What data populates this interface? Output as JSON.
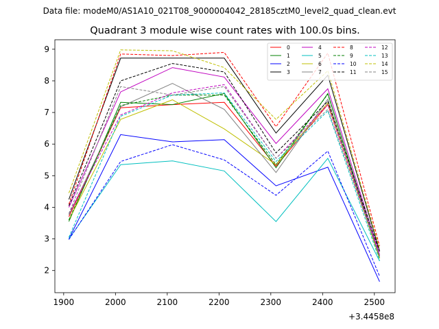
{
  "chart_data": {
    "type": "line",
    "suptitle": "Data file: modeM0/AS1A10_021T08_9000004042_28185cztM0_level2_quad_clean.evt",
    "title": "Quadrant 3 module wise count rates with 100.0s bins.",
    "xlabel": "",
    "ylabel": "",
    "x_offset_label": "+3.4458e8",
    "x": [
      1910,
      2010,
      2110,
      2210,
      2310,
      2410,
      2510
    ],
    "xlim": [
      1883,
      2540
    ],
    "ylim": [
      1.3,
      9.3
    ],
    "xticks": [
      1900,
      2000,
      2100,
      2200,
      2300,
      2400,
      2500
    ],
    "yticks": [
      2,
      3,
      4,
      5,
      6,
      7,
      8,
      9
    ],
    "legend_position": "top-right",
    "series": [
      {
        "name": "0",
        "color": "#ff0000",
        "dash": "solid",
        "values": [
          3.7,
          7.15,
          7.25,
          7.32,
          5.3,
          7.25,
          2.45
        ]
      },
      {
        "name": "1",
        "color": "#008000",
        "dash": "solid",
        "values": [
          3.55,
          7.32,
          7.25,
          7.6,
          5.25,
          7.6,
          2.4
        ]
      },
      {
        "name": "2",
        "color": "#0000ff",
        "dash": "solid",
        "values": [
          3.0,
          6.3,
          6.07,
          6.14,
          4.68,
          5.27,
          1.65
        ]
      },
      {
        "name": "3",
        "color": "#000000",
        "dash": "solid",
        "values": [
          4.25,
          8.72,
          8.72,
          8.72,
          6.35,
          8.18,
          2.62
        ]
      },
      {
        "name": "4",
        "color": "#bf00bf",
        "dash": "solid",
        "values": [
          4.0,
          7.65,
          8.42,
          8.12,
          6.02,
          7.75,
          2.5
        ]
      },
      {
        "name": "5",
        "color": "#00bfbf",
        "dash": "solid",
        "values": [
          3.0,
          5.35,
          5.47,
          5.15,
          3.55,
          5.55,
          2.3
        ]
      },
      {
        "name": "6",
        "color": "#bfbf00",
        "dash": "solid",
        "values": [
          3.6,
          6.78,
          7.4,
          6.48,
          5.35,
          7.3,
          2.38
        ]
      },
      {
        "name": "7",
        "color": "#808080",
        "dash": "solid",
        "values": [
          3.75,
          7.18,
          7.92,
          7.1,
          5.1,
          7.42,
          2.45
        ]
      },
      {
        "name": "8",
        "color": "#ff0000",
        "dash": "dashed",
        "values": [
          4.1,
          8.85,
          8.8,
          8.9,
          6.55,
          8.88,
          2.78
        ]
      },
      {
        "name": "9",
        "color": "#008000",
        "dash": "dashed",
        "values": [
          3.6,
          7.22,
          7.55,
          7.55,
          5.35,
          7.58,
          2.42
        ]
      },
      {
        "name": "10",
        "color": "#0000ff",
        "dash": "dashed",
        "values": [
          2.98,
          5.45,
          5.98,
          5.5,
          4.38,
          5.78,
          1.82
        ]
      },
      {
        "name": "11",
        "color": "#000000",
        "dash": "dashed",
        "values": [
          4.05,
          8.0,
          8.55,
          8.28,
          5.72,
          7.35,
          2.6
        ]
      },
      {
        "name": "12",
        "color": "#bf00bf",
        "dash": "dashed",
        "values": [
          3.8,
          6.92,
          7.62,
          7.88,
          5.55,
          7.25,
          2.48
        ]
      },
      {
        "name": "13",
        "color": "#00bfbf",
        "dash": "dashed",
        "values": [
          3.05,
          6.88,
          7.55,
          7.62,
          5.45,
          7.05,
          2.32
        ]
      },
      {
        "name": "14",
        "color": "#bfbf00",
        "dash": "dashed",
        "values": [
          4.45,
          8.98,
          8.95,
          8.42,
          6.78,
          8.32,
          2.7
        ]
      },
      {
        "name": "15",
        "color": "#808080",
        "dash": "dashed",
        "values": [
          3.8,
          7.82,
          7.55,
          7.82,
          5.55,
          7.1,
          2.45
        ]
      }
    ]
  }
}
